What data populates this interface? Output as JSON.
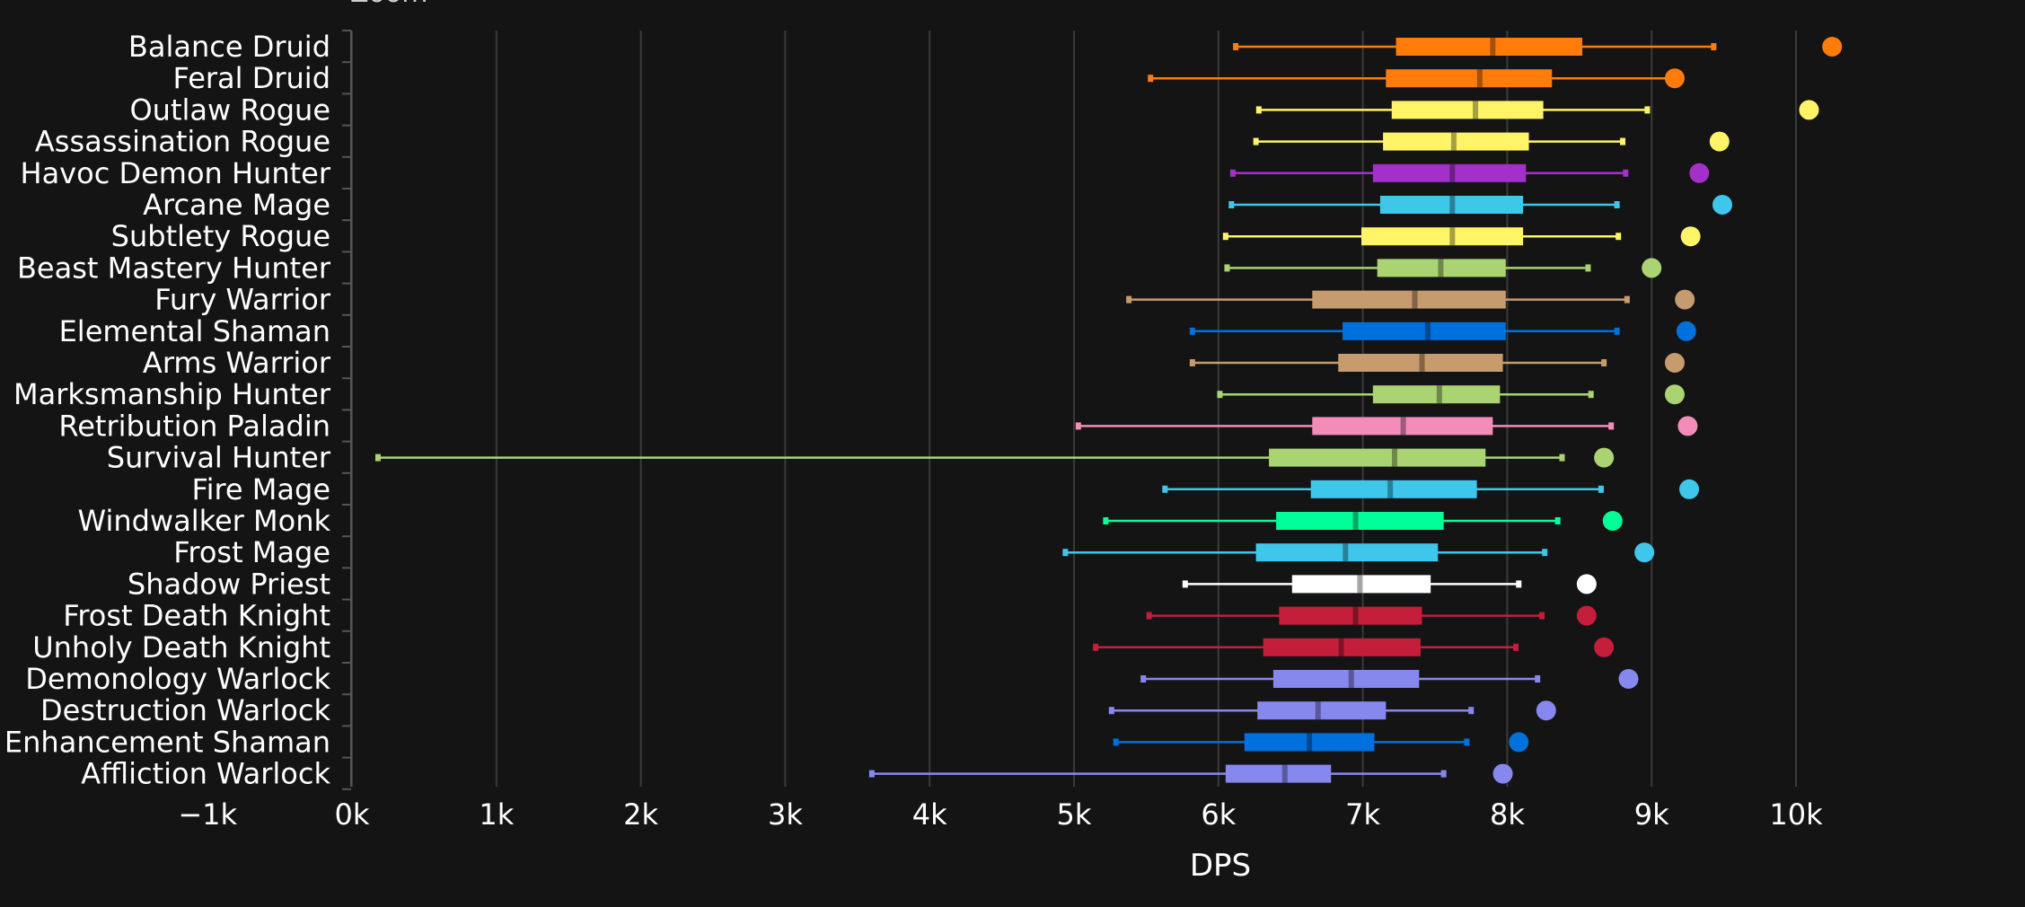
{
  "header": {
    "zoom_label": "Zoom"
  },
  "chart_data": {
    "type": "box",
    "title": "",
    "xlabel": "DPS",
    "ylabel": "",
    "xlim": [
      -1000,
      10500
    ],
    "x_ticks": [
      -1000,
      0,
      1000,
      2000,
      3000,
      4000,
      5000,
      6000,
      7000,
      8000,
      9000,
      10000
    ],
    "x_tick_labels": [
      "−1k",
      "0k",
      "1k",
      "2k",
      "3k",
      "4k",
      "5k",
      "6k",
      "7k",
      "8k",
      "9k",
      "10k"
    ],
    "grid": true,
    "series": [
      {
        "name": "Balance Druid",
        "color": "#FF7C0A",
        "min": 6120,
        "q1": 7230,
        "median": 7900,
        "q3": 8520,
        "max": 9430,
        "outlier": 10250
      },
      {
        "name": "Feral Druid",
        "color": "#FF7C0A",
        "min": 5530,
        "q1": 7160,
        "median": 7810,
        "q3": 8310,
        "max": 9200,
        "outlier": 9160
      },
      {
        "name": "Outlaw Rogue",
        "color": "#FFF468",
        "min": 6280,
        "q1": 7200,
        "median": 7780,
        "q3": 8250,
        "max": 8970,
        "outlier": 10090
      },
      {
        "name": "Assassination Rogue",
        "color": "#FFF468",
        "min": 6260,
        "q1": 7140,
        "median": 7630,
        "q3": 8150,
        "max": 8800,
        "outlier": 9470
      },
      {
        "name": "Havoc Demon Hunter",
        "color": "#A330C9",
        "min": 6100,
        "q1": 7070,
        "median": 7620,
        "q3": 8130,
        "max": 8820,
        "outlier": 9330
      },
      {
        "name": "Arcane Mage",
        "color": "#3FC7EB",
        "min": 6090,
        "q1": 7120,
        "median": 7620,
        "q3": 8110,
        "max": 8760,
        "outlier": 9490
      },
      {
        "name": "Subtlety Rogue",
        "color": "#FFF468",
        "min": 6050,
        "q1": 6990,
        "median": 7620,
        "q3": 8110,
        "max": 8770,
        "outlier": 9270
      },
      {
        "name": "Beast Mastery Hunter",
        "color": "#AAD372",
        "min": 6060,
        "q1": 7100,
        "median": 7540,
        "q3": 7990,
        "max": 8560,
        "outlier": 9000
      },
      {
        "name": "Fury Warrior",
        "color": "#C69B6D",
        "min": 5380,
        "q1": 6650,
        "median": 7360,
        "q3": 7990,
        "max": 8830,
        "outlier": 9230
      },
      {
        "name": "Elemental Shaman",
        "color": "#0070DD",
        "min": 5820,
        "q1": 6860,
        "median": 7450,
        "q3": 7990,
        "max": 8760,
        "outlier": 9240
      },
      {
        "name": "Arms Warrior",
        "color": "#C69B6D",
        "min": 5820,
        "q1": 6830,
        "median": 7410,
        "q3": 7970,
        "max": 8670,
        "outlier": 9160
      },
      {
        "name": "Marksmanship Hunter",
        "color": "#AAD372",
        "min": 6010,
        "q1": 7070,
        "median": 7530,
        "q3": 7950,
        "max": 8580,
        "outlier": 9160
      },
      {
        "name": "Retribution Paladin",
        "color": "#F48CBA",
        "min": 5030,
        "q1": 6650,
        "median": 7280,
        "q3": 7900,
        "max": 8720,
        "outlier": 9250
      },
      {
        "name": "Survival Hunter",
        "color": "#AAD372",
        "min": 180,
        "q1": 6350,
        "median": 7220,
        "q3": 7850,
        "max": 8380,
        "outlier": 8670
      },
      {
        "name": "Fire Mage",
        "color": "#3FC7EB",
        "min": 5630,
        "q1": 6640,
        "median": 7190,
        "q3": 7790,
        "max": 8650,
        "outlier": 9260
      },
      {
        "name": "Windwalker Monk",
        "color": "#00FF98",
        "min": 5220,
        "q1": 6400,
        "median": 6950,
        "q3": 7560,
        "max": 8350,
        "outlier": 8730
      },
      {
        "name": "Frost Mage",
        "color": "#3FC7EB",
        "min": 4940,
        "q1": 6260,
        "median": 6880,
        "q3": 7520,
        "max": 8260,
        "outlier": 8950
      },
      {
        "name": "Shadow Priest",
        "color": "#FFFFFF",
        "min": 5770,
        "q1": 6510,
        "median": 6980,
        "q3": 7470,
        "max": 8080,
        "outlier": 8550
      },
      {
        "name": "Frost Death Knight",
        "color": "#C41E3A",
        "min": 5520,
        "q1": 6420,
        "median": 6950,
        "q3": 7410,
        "max": 8240,
        "outlier": 8550
      },
      {
        "name": "Unholy Death Knight",
        "color": "#C41E3A",
        "min": 5150,
        "q1": 6310,
        "median": 6850,
        "q3": 7400,
        "max": 8060,
        "outlier": 8670
      },
      {
        "name": "Demonology Warlock",
        "color": "#8788EE",
        "min": 5480,
        "q1": 6380,
        "median": 6920,
        "q3": 7390,
        "max": 8210,
        "outlier": 8840
      },
      {
        "name": "Destruction Warlock",
        "color": "#8788EE",
        "min": 5260,
        "q1": 6270,
        "median": 6690,
        "q3": 7160,
        "max": 7750,
        "outlier": 8270
      },
      {
        "name": "Enhancement Shaman",
        "color": "#0070DD",
        "min": 5290,
        "q1": 6180,
        "median": 6630,
        "q3": 7080,
        "max": 7720,
        "outlier": 8080
      },
      {
        "name": "Affliction Warlock",
        "color": "#8788EE",
        "min": 3600,
        "q1": 6050,
        "median": 6460,
        "q3": 6780,
        "max": 7560,
        "outlier": 7970
      }
    ]
  }
}
